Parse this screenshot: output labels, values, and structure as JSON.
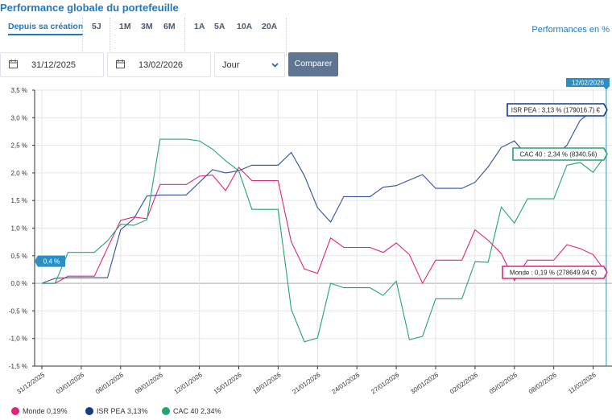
{
  "header": {
    "title": "Performance globale du portefeuille",
    "performance_unit_label": "Performances en %"
  },
  "period_tabs": [
    {
      "label": "Depuis sa création",
      "active": true
    },
    {
      "label": "5J"
    },
    {
      "label": "1M"
    },
    {
      "label": "3M"
    },
    {
      "label": "6M"
    },
    {
      "label": "1A"
    },
    {
      "label": "5A"
    },
    {
      "label": "10A"
    },
    {
      "label": "20A"
    }
  ],
  "filters": {
    "start_date": "31/12/2025",
    "end_date": "13/02/2026",
    "granularity": "Jour",
    "compare_label": "Comparer"
  },
  "chart_data": {
    "type": "line",
    "ylim": [
      -1.5,
      3.5
    ],
    "y_ticks": [
      "3,5 %",
      "3,0 %",
      "2,5 %",
      "2,0 %",
      "1,5 %",
      "1,0 %",
      "0,5 %",
      "0,0 %",
      "-0,5 %",
      "-1,0 %",
      "-1,5 %"
    ],
    "y_tick_values": [
      3.5,
      3.0,
      2.5,
      2.0,
      1.5,
      1.0,
      0.5,
      0.0,
      -0.5,
      -1.0,
      -1.5
    ],
    "grid": true,
    "x": [
      "31/12/2025",
      "01/01/2026",
      "02/01/2026",
      "03/01/2026",
      "04/01/2026",
      "05/01/2026",
      "06/01/2026",
      "07/01/2026",
      "08/01/2026",
      "09/01/2026",
      "10/01/2026",
      "11/01/2026",
      "12/01/2026",
      "13/01/2026",
      "14/01/2026",
      "15/01/2026",
      "16/01/2026",
      "17/01/2026",
      "18/01/2026",
      "19/01/2026",
      "20/01/2026",
      "21/01/2026",
      "22/01/2026",
      "23/01/2026",
      "24/01/2026",
      "25/01/2026",
      "26/01/2026",
      "27/01/2026",
      "28/01/2026",
      "29/01/2026",
      "30/01/2026",
      "31/01/2026",
      "01/02/2026",
      "02/02/2026",
      "03/02/2026",
      "04/02/2026",
      "05/02/2026",
      "06/02/2026",
      "07/02/2026",
      "08/02/2026",
      "09/02/2026",
      "10/02/2026",
      "11/02/2026",
      "12/02/2026"
    ],
    "x_tick_labels": [
      "31/12/2025",
      "03/01/2026",
      "06/01/2026",
      "09/01/2026",
      "12/01/2026",
      "15/01/2026",
      "18/01/2026",
      "21/01/2026",
      "24/01/2026",
      "27/01/2026",
      "30/01/2026",
      "02/02/2026",
      "05/02/2026",
      "08/02/2026",
      "11/02/2026"
    ],
    "series": [
      {
        "name": "Monde",
        "color": "#e0247a",
        "legend_value": "0,19%",
        "values": [
          0,
          0,
          0.13,
          0.13,
          0.13,
          0.64,
          1.14,
          1.2,
          1.17,
          1.79,
          1.79,
          1.79,
          1.94,
          1.96,
          1.68,
          2.1,
          1.86,
          1.86,
          1.86,
          0.75,
          0.26,
          0.18,
          0.82,
          0.65,
          0.65,
          0.65,
          0.56,
          0.73,
          0.52,
          0.0,
          0.42,
          0.42,
          0.42,
          0.97,
          0.78,
          0.54,
          0.05,
          0.42,
          0.42,
          0.42,
          0.7,
          0.63,
          0.52,
          0.19
        ]
      },
      {
        "name": "ISR PEA",
        "color": "#2f4f9f",
        "legend_color": "#163a86",
        "legend_value": "3,13%",
        "values": [
          0,
          0.09,
          0.1,
          0.1,
          0.1,
          0.1,
          0.97,
          1.17,
          1.58,
          1.6,
          1.6,
          1.6,
          1.83,
          2.06,
          2.0,
          2.04,
          2.14,
          2.14,
          2.14,
          2.37,
          1.95,
          1.37,
          1.11,
          1.57,
          1.57,
          1.57,
          1.74,
          1.77,
          1.87,
          1.97,
          1.72,
          1.72,
          1.72,
          1.83,
          2.11,
          2.46,
          2.58,
          2.3,
          2.3,
          2.3,
          2.5,
          2.95,
          3.14,
          3.13
        ]
      },
      {
        "name": "CAC 40",
        "color": "#22a56d",
        "legend_value": "2,34%",
        "values": [
          0,
          0,
          0.56,
          0.56,
          0.56,
          0.77,
          1.07,
          1.05,
          1.15,
          2.61,
          2.61,
          2.61,
          2.58,
          2.43,
          2.22,
          2.04,
          1.34,
          1.34,
          1.34,
          -0.47,
          -1.06,
          -0.99,
          0,
          -0.08,
          -0.08,
          -0.08,
          -0.22,
          0.04,
          -1.02,
          -0.96,
          -0.28,
          -0.28,
          -0.28,
          0.39,
          0.38,
          1.38,
          1.09,
          1.53,
          1.53,
          1.53,
          2.14,
          2.19,
          2.01,
          2.34
        ]
      }
    ],
    "tooltips": [
      {
        "series": "ISR PEA",
        "text": "ISR PEA : 3,13 % (179016.7) €"
      },
      {
        "series": "CAC 40",
        "text": "CAC 40 : 2,34 % (8340.56)"
      },
      {
        "series": "Monde",
        "text": "Monde : 0,19 % (278649.94 €)"
      }
    ],
    "crosshair": {
      "x_label": "12/02/2026",
      "y_label": "0,4 %",
      "y_value": 0.4,
      "color": "#2a8fc4"
    }
  }
}
